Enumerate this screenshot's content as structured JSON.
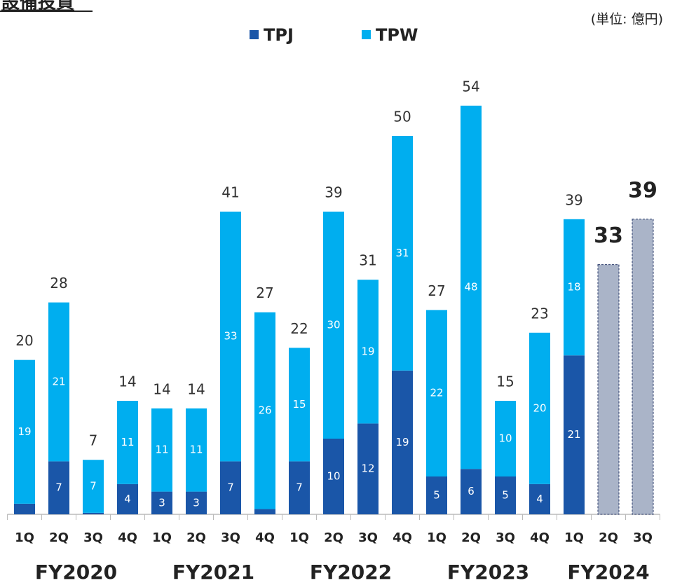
{
  "chart_data": {
    "type": "stacked_bar",
    "title": "設備投資",
    "unit_label": "(単位: 億円)",
    "groups": [
      {
        "label": "FY2020",
        "categories": [
          "1Q",
          "2Q",
          "3Q",
          "4Q"
        ]
      },
      {
        "label": "FY2021",
        "categories": [
          "1Q",
          "2Q",
          "3Q",
          "4Q"
        ]
      },
      {
        "label": "FY2022",
        "categories": [
          "1Q",
          "2Q",
          "3Q",
          "4Q"
        ]
      },
      {
        "label": "FY2023",
        "categories": [
          "1Q",
          "2Q",
          "3Q",
          "4Q"
        ]
      },
      {
        "label": "FY2024",
        "categories": [
          "1Q",
          "2Q",
          "3Q"
        ]
      }
    ],
    "series": [
      {
        "name": "TPJ",
        "color": "#1a56a8",
        "values": [
          1.4,
          7,
          0.2,
          4,
          3,
          3,
          7,
          0.7,
          7,
          10,
          12,
          19,
          5,
          6,
          5,
          4,
          21,
          null,
          null
        ],
        "value_labels": [
          null,
          "7",
          null,
          "4",
          "3",
          "3",
          "7",
          null,
          "7",
          "10",
          "12",
          "19",
          "5",
          "6",
          "5",
          "4",
          "21",
          null,
          null
        ]
      },
      {
        "name": "TPW",
        "color": "#00aeef",
        "values": [
          19,
          21,
          7,
          11,
          11,
          11,
          33,
          26,
          15,
          30,
          19,
          31,
          22,
          48,
          10,
          20,
          18,
          null,
          null
        ]
      }
    ],
    "totals": [
      20,
      28,
      7,
      14,
      14,
      14,
      41,
      27,
      22,
      39,
      31,
      50,
      27,
      54,
      15,
      23,
      39,
      null,
      null
    ],
    "forecast": {
      "color": "#aab4c8",
      "values": [
        null,
        null,
        null,
        null,
        null,
        null,
        null,
        null,
        null,
        null,
        null,
        null,
        null,
        null,
        null,
        null,
        null,
        33,
        39
      ]
    },
    "ylim": [
      0,
      60
    ]
  }
}
